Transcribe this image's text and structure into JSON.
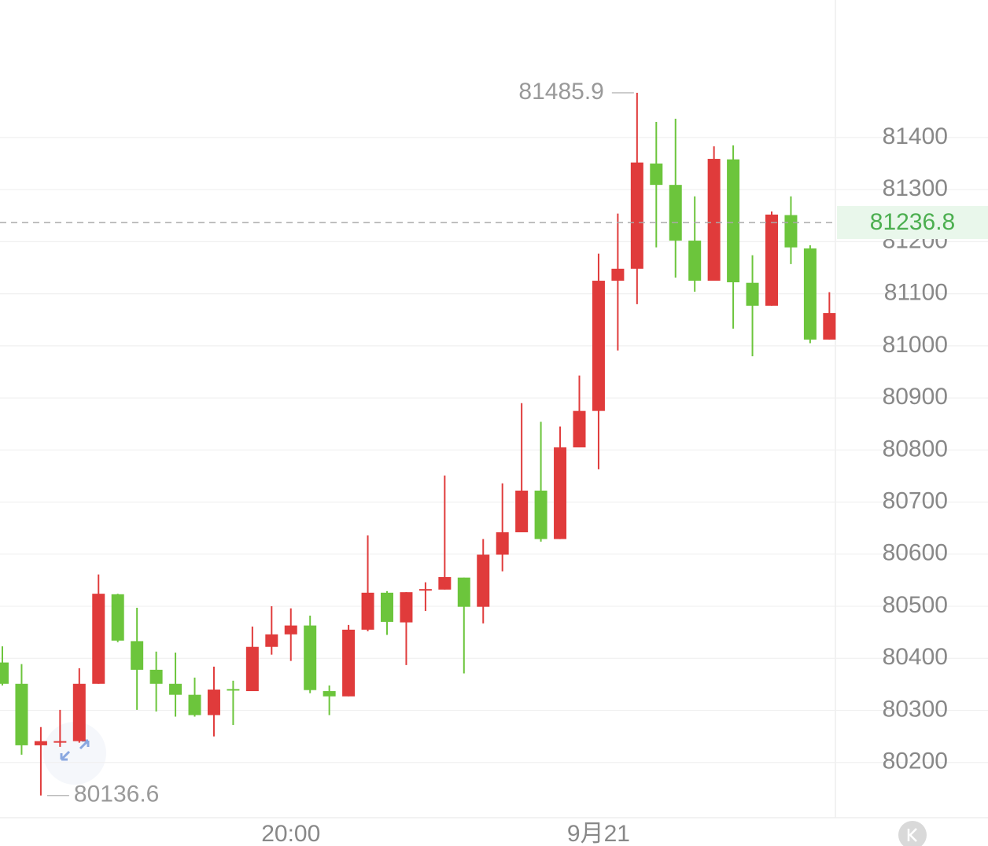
{
  "chart_data": {
    "type": "candlestick",
    "categories": [
      null,
      null,
      null,
      null,
      null,
      null,
      null,
      null,
      null,
      null,
      null,
      null,
      null,
      null,
      null,
      "20:00",
      null,
      null,
      null,
      null,
      null,
      null,
      null,
      null,
      null,
      null,
      null,
      null,
      null,
      null,
      null,
      "9月21",
      null,
      null,
      null,
      null,
      null,
      null,
      null,
      null,
      null,
      null,
      null,
      null
    ],
    "open": [
      80392,
      80351,
      80233,
      80238,
      80241,
      80351,
      80523,
      80433,
      80378,
      80351,
      80330,
      80291,
      80341,
      80337,
      80422,
      80446,
      80463,
      80337,
      80327,
      80455,
      80526,
      80469,
      80530,
      80532,
      80555,
      80499,
      80599,
      80642,
      80722,
      80629,
      80805,
      80875,
      81125,
      81148,
      81350,
      81309,
      81202,
      81125,
      81358,
      81121,
      81077,
      81251,
      81187,
      81012
    ],
    "high": [
      80423,
      80389,
      80268,
      80301,
      80381,
      80561,
      80524,
      80497,
      80413,
      80411,
      80363,
      80384,
      80357,
      80461,
      80500,
      80496,
      80482,
      80348,
      80464,
      80636,
      80529,
      80527,
      80546,
      80751,
      80555,
      80629,
      80736,
      80890,
      80854,
      80845,
      80943,
      81177,
      81254,
      81485.9,
      81430,
      81436,
      81287,
      81383,
      81385,
      81174,
      81258,
      81287,
      81193,
      81103
    ],
    "low": [
      80348,
      80215,
      80136.6,
      80230,
      80238,
      80351,
      80431,
      80301,
      80298,
      80288,
      80288,
      80250,
      80272,
      80337,
      80407,
      80395,
      80333,
      80291,
      80327,
      80452,
      80445,
      80387,
      80491,
      80532,
      80371,
      80467,
      80567,
      80642,
      80624,
      80629,
      80805,
      80763,
      80991,
      81080,
      81189,
      81131,
      81104,
      81125,
      81033,
      80980,
      81077,
      81157,
      81005,
      81012
    ],
    "close": [
      80351,
      80233,
      80241,
      80241,
      80351,
      80524,
      80434,
      80378,
      80351,
      80330,
      80291,
      80340,
      80338,
      80422,
      80446,
      80463,
      80339,
      80327,
      80455,
      80526,
      80470,
      80527,
      80533,
      80556,
      80499,
      80599,
      80642,
      80722,
      80629,
      80805,
      80875,
      81125,
      81148,
      81352,
      81309,
      81202,
      81125,
      81359,
      81122,
      81077,
      81252,
      81189,
      81012,
      81063
    ],
    "up_color": "#e03b3b",
    "down_color": "#6cc53c",
    "ylim": [
      80094,
      81664
    ],
    "yticks": [
      80200,
      80300,
      80400,
      80500,
      80600,
      80700,
      80800,
      80900,
      81000,
      81100,
      81200,
      81300,
      81400
    ],
    "last_price": 81236.8,
    "max_index": 33,
    "min_index": 2
  }
}
